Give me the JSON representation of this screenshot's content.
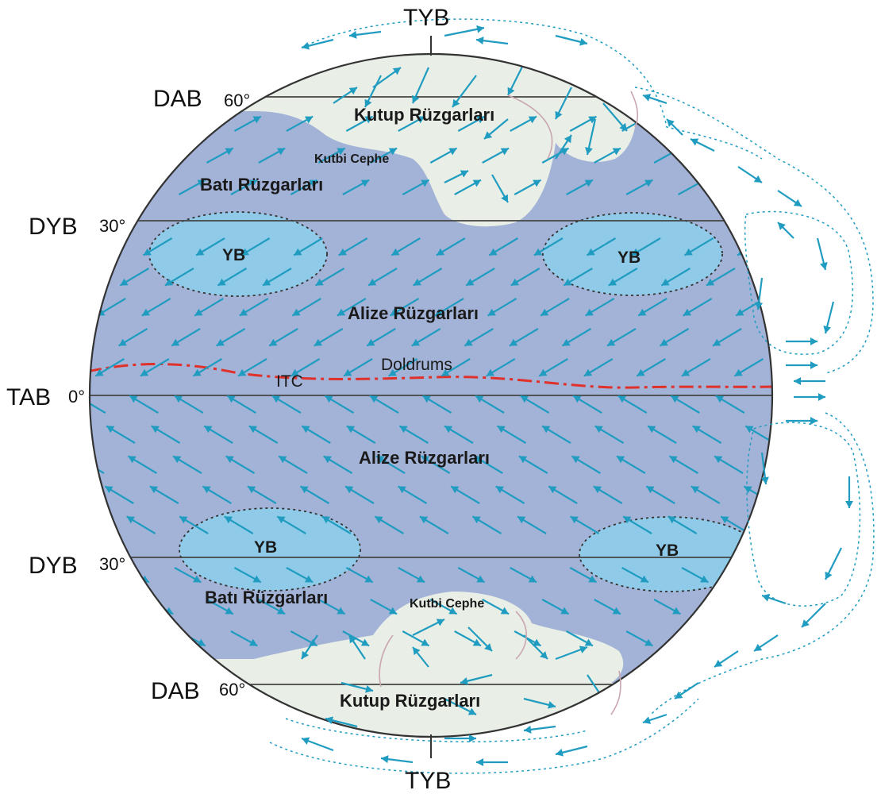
{
  "labels": {
    "tyb_top": "TYB",
    "tyb_bottom": "TYB",
    "dab_north": "DAB",
    "dab_north_deg": "60°",
    "dyb_north": "DYB",
    "dyb_north_deg": "30°",
    "tab": "TAB",
    "tab_deg": "0°",
    "dyb_south": "DYB",
    "dyb_south_deg": "30°",
    "dab_south": "DAB",
    "dab_south_deg": "60°"
  },
  "winds": {
    "polar_north": "Kutup Rüzgarları",
    "front_north": "Kutbi Cephe",
    "westerlies_north": "Batı Rüzgarları",
    "trade_north": "Alize Rüzgarları",
    "trade_south": "Alize Rüzgarları",
    "westerlies_south": "Batı Rüzgarları",
    "front_south": "Kutbi Cephe",
    "polar_south": "Kutup Rüzgarları"
  },
  "pressure": {
    "yb_nw": "YB",
    "yb_ne": "YB",
    "yb_sw": "YB",
    "yb_se": "YB"
  },
  "equator": {
    "itc": "ITC",
    "doldrums": "Doldrums"
  },
  "colors": {
    "ocean": "#a3b3d7",
    "polar": "#e9efe6",
    "high_pressure": "#8fcbe9",
    "arrow": "#1f9cc0",
    "itc_line": "#e0302a"
  }
}
